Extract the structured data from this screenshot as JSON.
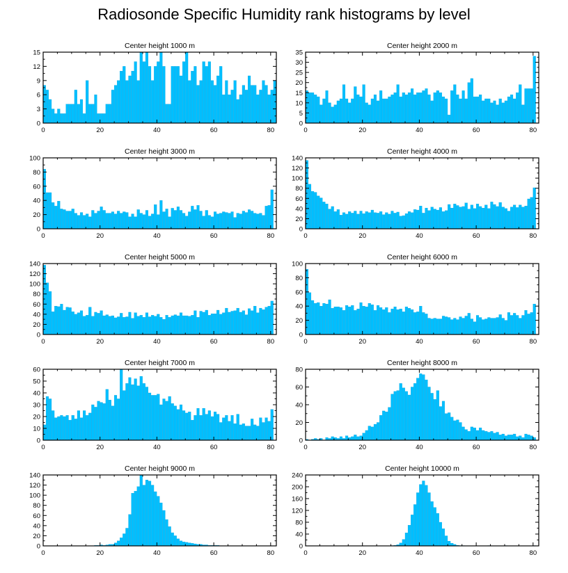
{
  "title": "Radiosonde Specific Humidity rank histograms by level",
  "colors": {
    "bar": "#00bfff",
    "bar_stroke": "#0a9fd8",
    "axis": "#000000"
  },
  "chart_data": [
    {
      "type": "bar",
      "title": "Center height 1000 m",
      "xlabel": "",
      "ylabel": "",
      "xlim": [
        0,
        82
      ],
      "ylim": [
        0,
        15
      ],
      "xticks": [
        0,
        20,
        40,
        60,
        80
      ],
      "yticks": [
        0,
        3,
        6,
        9,
        12,
        15
      ],
      "values": [
        8,
        7,
        5,
        3,
        2,
        3,
        2,
        2,
        4,
        4,
        4,
        7,
        4,
        5,
        2,
        9,
        4,
        4,
        6,
        2,
        2,
        2,
        4,
        4,
        7,
        8,
        9,
        11,
        12,
        9,
        10,
        11,
        13,
        9,
        15,
        13,
        15,
        12,
        9,
        12,
        13,
        15,
        12,
        4,
        4,
        12,
        12,
        12,
        10,
        13,
        15,
        9,
        11,
        12,
        8,
        9,
        13,
        12,
        13,
        9,
        8,
        10,
        12,
        6,
        9,
        6,
        7,
        9,
        5,
        6,
        8,
        7,
        10,
        8,
        8,
        6,
        7,
        9,
        8,
        6,
        7,
        9
      ]
    },
    {
      "type": "bar",
      "title": "Center height 2000 m",
      "xlabel": "",
      "ylabel": "",
      "xlim": [
        0,
        82
      ],
      "ylim": [
        0,
        35
      ],
      "xticks": [
        0,
        20,
        40,
        60,
        80
      ],
      "yticks": [
        0,
        5,
        10,
        15,
        20,
        25,
        30,
        35
      ],
      "values": [
        16,
        15,
        15,
        14,
        13,
        9,
        12,
        16,
        10,
        8,
        9,
        11,
        12,
        19,
        12,
        10,
        12,
        18,
        14,
        13,
        19,
        10,
        9,
        12,
        14,
        11,
        16,
        12,
        12,
        13,
        14,
        15,
        19,
        13,
        15,
        14,
        15,
        17,
        14,
        15,
        15,
        16,
        17,
        14,
        11,
        15,
        16,
        15,
        13,
        12,
        4,
        16,
        19,
        14,
        12,
        16,
        12,
        20,
        22,
        13,
        13,
        14,
        11,
        12,
        12,
        10,
        11,
        9,
        12,
        10,
        11,
        13,
        14,
        12,
        15,
        19,
        9,
        17,
        17,
        17,
        33
      ]
    },
    {
      "type": "bar",
      "title": "Center height 3000 m",
      "xlabel": "",
      "ylabel": "",
      "xlim": [
        0,
        82
      ],
      "ylim": [
        0,
        100
      ],
      "xticks": [
        0,
        20,
        40,
        60,
        80
      ],
      "yticks": [
        0,
        20,
        40,
        60,
        80,
        100
      ],
      "values": [
        84,
        51,
        51,
        37,
        32,
        39,
        28,
        27,
        25,
        25,
        28,
        22,
        19,
        23,
        19,
        21,
        17,
        26,
        22,
        25,
        31,
        26,
        22,
        22,
        24,
        21,
        25,
        22,
        24,
        23,
        17,
        21,
        17,
        27,
        22,
        20,
        26,
        18,
        21,
        34,
        20,
        40,
        24,
        28,
        17,
        29,
        26,
        31,
        26,
        22,
        18,
        24,
        32,
        27,
        33,
        25,
        18,
        26,
        19,
        17,
        24,
        21,
        22,
        24,
        23,
        22,
        24,
        16,
        22,
        21,
        25,
        23,
        27,
        25,
        22,
        21,
        22,
        19,
        32,
        33,
        55
      ]
    },
    {
      "type": "bar",
      "title": "Center height 4000 m",
      "xlabel": "",
      "ylabel": "",
      "xlim": [
        0,
        82
      ],
      "ylim": [
        0,
        140
      ],
      "xticks": [
        0,
        20,
        40,
        60,
        80
      ],
      "yticks": [
        0,
        20,
        40,
        60,
        80,
        100,
        120,
        140
      ],
      "values": [
        135,
        88,
        74,
        72,
        65,
        61,
        53,
        49,
        39,
        44,
        34,
        38,
        27,
        32,
        29,
        34,
        31,
        35,
        29,
        35,
        30,
        34,
        32,
        37,
        32,
        31,
        34,
        28,
        32,
        29,
        35,
        31,
        33,
        25,
        26,
        30,
        34,
        32,
        38,
        37,
        45,
        31,
        41,
        36,
        43,
        39,
        37,
        42,
        34,
        36,
        48,
        41,
        49,
        46,
        43,
        44,
        51,
        39,
        47,
        40,
        49,
        44,
        41,
        47,
        40,
        53,
        48,
        44,
        52,
        43,
        40,
        35,
        43,
        47,
        42,
        47,
        43,
        45,
        59,
        62,
        81
      ]
    },
    {
      "type": "bar",
      "title": "Center height 5000 m",
      "xlabel": "",
      "ylabel": "",
      "xlim": [
        0,
        82
      ],
      "ylim": [
        0,
        140
      ],
      "xticks": [
        0,
        20,
        40,
        60,
        80
      ],
      "yticks": [
        0,
        20,
        40,
        60,
        80,
        100,
        120,
        140
      ],
      "values": [
        137,
        102,
        85,
        45,
        56,
        55,
        60,
        48,
        54,
        53,
        45,
        40,
        43,
        47,
        36,
        38,
        54,
        36,
        44,
        42,
        47,
        37,
        39,
        36,
        37,
        33,
        35,
        42,
        34,
        35,
        44,
        32,
        43,
        36,
        38,
        34,
        43,
        35,
        38,
        36,
        40,
        34,
        30,
        38,
        34,
        37,
        39,
        37,
        43,
        37,
        37,
        36,
        38,
        47,
        34,
        46,
        44,
        48,
        38,
        41,
        41,
        48,
        40,
        43,
        52,
        44,
        46,
        47,
        52,
        44,
        47,
        39,
        51,
        47,
        56,
        43,
        52,
        49,
        54,
        56,
        66
      ]
    },
    {
      "type": "bar",
      "title": "Center height 6000 m",
      "xlabel": "",
      "ylabel": "",
      "xlim": [
        0,
        82
      ],
      "ylim": [
        0,
        100
      ],
      "xticks": [
        0,
        20,
        40,
        60,
        80
      ],
      "yticks": [
        0,
        20,
        40,
        60,
        80,
        100
      ],
      "values": [
        92,
        59,
        48,
        44,
        45,
        40,
        44,
        43,
        49,
        37,
        39,
        39,
        38,
        34,
        41,
        39,
        41,
        34,
        36,
        45,
        40,
        39,
        44,
        42,
        34,
        41,
        38,
        35,
        38,
        31,
        36,
        39,
        35,
        36,
        32,
        39,
        37,
        35,
        31,
        32,
        40,
        31,
        29,
        23,
        22,
        23,
        22,
        22,
        26,
        25,
        24,
        21,
        23,
        21,
        25,
        23,
        26,
        30,
        22,
        18,
        27,
        24,
        21,
        22,
        24,
        23,
        23,
        24,
        28,
        23,
        20,
        31,
        27,
        30,
        27,
        23,
        27,
        34,
        29,
        31,
        43
      ]
    },
    {
      "type": "bar",
      "title": "Center height 7000 m",
      "xlabel": "",
      "ylabel": "",
      "xlim": [
        0,
        82
      ],
      "ylim": [
        0,
        60
      ],
      "xticks": [
        0,
        20,
        40,
        60,
        80
      ],
      "yticks": [
        0,
        10,
        20,
        30,
        40,
        50,
        60
      ],
      "values": [
        13,
        37,
        35,
        25,
        19,
        20,
        21,
        20,
        21,
        17,
        21,
        18,
        25,
        19,
        25,
        21,
        23,
        30,
        28,
        33,
        32,
        31,
        43,
        34,
        29,
        38,
        35,
        60,
        42,
        48,
        53,
        47,
        52,
        46,
        54,
        48,
        45,
        40,
        38,
        38,
        39,
        30,
        35,
        33,
        37,
        31,
        29,
        26,
        30,
        25,
        23,
        24,
        17,
        21,
        27,
        21,
        27,
        22,
        25,
        20,
        24,
        22,
        15,
        19,
        21,
        16,
        21,
        14,
        22,
        13,
        14,
        12,
        12,
        18,
        13,
        12,
        19,
        15,
        19,
        16,
        26
      ]
    },
    {
      "type": "bar",
      "title": "Center height 8000 m",
      "xlabel": "",
      "ylabel": "",
      "xlim": [
        0,
        82
      ],
      "ylim": [
        0,
        80
      ],
      "xticks": [
        0,
        20,
        40,
        60,
        80
      ],
      "yticks": [
        0,
        20,
        40,
        60,
        80
      ],
      "values": [
        1,
        0,
        1,
        2,
        1,
        2,
        0,
        3,
        2,
        4,
        3,
        2,
        4,
        2,
        5,
        3,
        4,
        6,
        4,
        5,
        8,
        11,
        16,
        15,
        18,
        20,
        28,
        33,
        32,
        37,
        52,
        55,
        56,
        64,
        59,
        55,
        51,
        60,
        64,
        70,
        75,
        74,
        68,
        60,
        53,
        46,
        56,
        38,
        44,
        30,
        31,
        26,
        22,
        23,
        20,
        15,
        12,
        10,
        15,
        14,
        11,
        14,
        11,
        10,
        9,
        10,
        8,
        9,
        6,
        7,
        5,
        6,
        6,
        7,
        4,
        5,
        3,
        7,
        6,
        5,
        3
      ]
    },
    {
      "type": "bar",
      "title": "Center height 9000 m",
      "xlabel": "",
      "ylabel": "",
      "xlim": [
        0,
        82
      ],
      "ylim": [
        0,
        140
      ],
      "xticks": [
        0,
        20,
        40,
        60,
        80
      ],
      "yticks": [
        0,
        20,
        40,
        60,
        80,
        100,
        120,
        140
      ],
      "values": [
        0,
        0,
        0,
        0,
        0,
        0,
        0,
        0,
        0,
        0,
        0,
        0,
        0,
        0,
        0,
        0,
        0,
        0,
        1,
        1,
        2,
        1,
        2,
        3,
        3,
        6,
        10,
        16,
        24,
        35,
        62,
        104,
        108,
        117,
        140,
        120,
        130,
        128,
        120,
        107,
        98,
        85,
        70,
        52,
        38,
        26,
        20,
        14,
        10,
        8,
        7,
        6,
        5,
        4,
        3,
        3,
        2,
        2,
        1,
        1,
        1,
        1,
        0,
        0,
        0,
        0,
        0,
        0,
        0,
        0,
        0,
        0,
        0,
        0,
        0,
        0,
        0,
        0,
        0,
        0,
        0
      ]
    },
    {
      "type": "bar",
      "title": "Center height 10000 m",
      "xlabel": "",
      "ylabel": "",
      "xlim": [
        0,
        82
      ],
      "ylim": [
        0,
        240
      ],
      "xticks": [
        0,
        20,
        40,
        60,
        80
      ],
      "yticks": [
        0,
        40,
        80,
        120,
        160,
        200,
        240
      ],
      "values": [
        0,
        0,
        0,
        0,
        0,
        0,
        0,
        0,
        0,
        0,
        0,
        0,
        0,
        0,
        0,
        0,
        0,
        0,
        0,
        0,
        0,
        0,
        0,
        0,
        0,
        0,
        0,
        0,
        0,
        0,
        1,
        2,
        4,
        10,
        22,
        44,
        70,
        105,
        140,
        180,
        208,
        220,
        205,
        180,
        150,
        130,
        110,
        80,
        58,
        34,
        16,
        9,
        5,
        2,
        1,
        1,
        0,
        0,
        0,
        0,
        0,
        0,
        0,
        0,
        1,
        0,
        0,
        0,
        0,
        0,
        1,
        0,
        0,
        0,
        0,
        0,
        0,
        0,
        0,
        0,
        1
      ]
    }
  ]
}
